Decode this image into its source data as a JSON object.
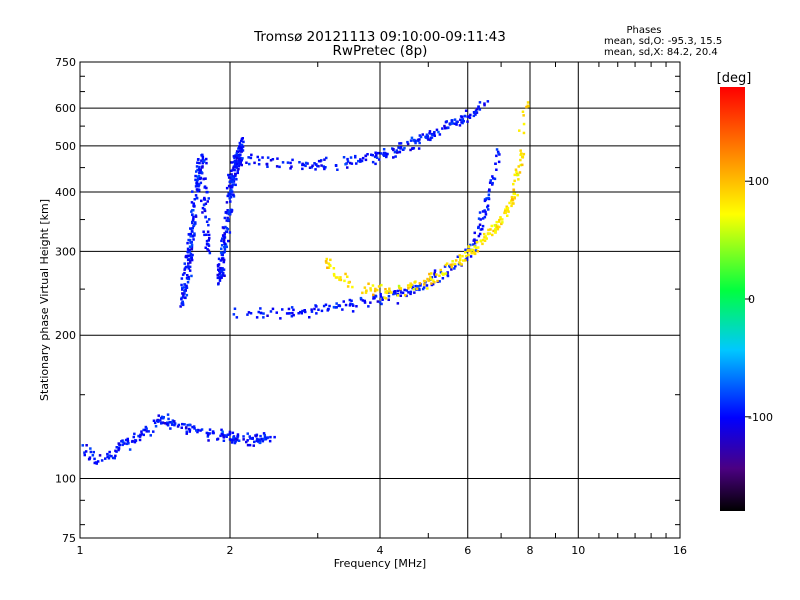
{
  "chart_data": {
    "type": "scatter",
    "title": "Tromsø 20121113 09:10:00-09:11:43",
    "subtitle": "RwPretec (8p)",
    "xlabel": "Frequency [MHz]",
    "ylabel": "Stationary phase Virtual Height [km]",
    "x_scale": "log",
    "y_scale": "log",
    "xlim": [
      1,
      16
    ],
    "ylim": [
      75,
      750
    ],
    "x_ticks": [
      1,
      2,
      4,
      6,
      8,
      10,
      16
    ],
    "y_ticks": [
      75,
      100,
      200,
      300,
      400,
      500,
      600,
      750
    ],
    "grid": true,
    "legend": {
      "title": "Phases",
      "lines": [
        "mean, sd,O: -95.3, 15.5",
        "mean, sd,X:  84.2, 20.4"
      ],
      "placement": "top-right"
    },
    "colorbar": {
      "label": "[deg]",
      "range": [
        -180,
        180
      ],
      "ticks": [
        100,
        0,
        -100
      ],
      "colormap": "rainbow"
    },
    "series": [
      {
        "name": "O",
        "phase_mean": -95.3,
        "phase_sd": 15.5,
        "traces": [
          {
            "x": [
              1.0,
              1.1,
              1.2,
              1.3,
              1.45,
              1.6,
              1.8,
              2.0,
              2.2,
              2.4
            ],
            "y": [
              115,
              110,
              118,
              122,
              135,
              128,
              125,
              122,
              121,
              124
            ]
          },
          {
            "x": [
              1.6,
              1.65,
              1.7,
              1.75,
              1.8
            ],
            "y": [
              230,
              300,
              400,
              480,
              300
            ]
          },
          {
            "x": [
              1.9,
              2.0,
              2.1
            ],
            "y": [
              260,
              420,
              510
            ]
          },
          {
            "x": [
              2.0,
              2.5,
              3.0,
              3.5,
              4.0,
              4.5,
              5.0,
              5.5,
              6.0,
              6.3,
              6.6,
              6.9
            ],
            "y": [
              222,
              223,
              228,
              233,
              240,
              248,
              260,
              275,
              300,
              340,
              400,
              500
            ]
          },
          {
            "x": [
              2.0,
              2.5,
              3.0,
              3.5,
              4.0,
              4.5,
              5.0,
              5.5,
              6.0,
              6.5
            ],
            "y": [
              470,
              460,
              458,
              465,
              480,
              500,
              530,
              560,
              580,
              620
            ]
          }
        ]
      },
      {
        "name": "X",
        "phase_mean": 84.2,
        "phase_sd": 20.4,
        "traces": [
          {
            "x": [
              3.1,
              3.3,
              3.6,
              4.0,
              4.5,
              5.0,
              5.5,
              6.0,
              6.5,
              7.0,
              7.4,
              7.6,
              7.8
            ],
            "y": [
              290,
              265,
              252,
              248,
              252,
              262,
              280,
              300,
              320,
              350,
              400,
              480,
              620
            ]
          }
        ]
      }
    ]
  }
}
